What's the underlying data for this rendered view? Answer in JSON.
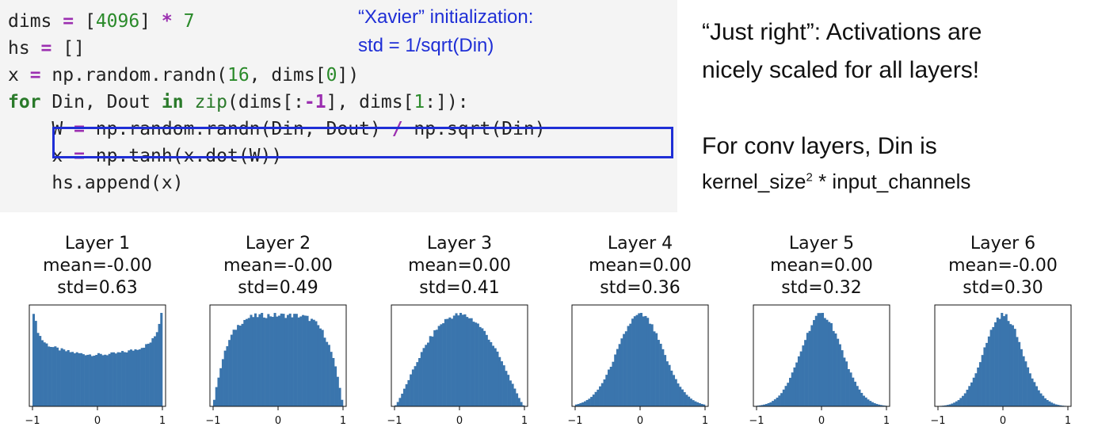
{
  "code": {
    "lines": [
      [
        [
          "dims ",
          "plain"
        ],
        [
          "=",
          "op"
        ],
        [
          " [",
          "plain"
        ],
        [
          "4096",
          "num"
        ],
        [
          "] ",
          "plain"
        ],
        [
          "*",
          "op"
        ],
        [
          " ",
          "plain"
        ],
        [
          "7",
          "num"
        ]
      ],
      [
        [
          "hs ",
          "plain"
        ],
        [
          "=",
          "op"
        ],
        [
          " []",
          "plain"
        ]
      ],
      [
        [
          "x ",
          "plain"
        ],
        [
          "=",
          "op"
        ],
        [
          " np.random.randn(",
          "plain"
        ],
        [
          "16",
          "num"
        ],
        [
          ", dims[",
          "plain"
        ],
        [
          "0",
          "num"
        ],
        [
          "])",
          "plain"
        ]
      ],
      [
        [
          "for",
          "kw"
        ],
        [
          " Din, Dout ",
          "plain"
        ],
        [
          "in",
          "kw"
        ],
        [
          " ",
          "plain"
        ],
        [
          "zip",
          "bi"
        ],
        [
          "(dims[:",
          "plain"
        ],
        [
          "-1",
          "op"
        ],
        [
          "], dims[",
          "plain"
        ],
        [
          "1",
          "num"
        ],
        [
          ":]):",
          "plain"
        ]
      ],
      [
        [
          "    W ",
          "plain"
        ],
        [
          "=",
          "op"
        ],
        [
          " np.random.randn(Din, Dout) ",
          "plain"
        ],
        [
          "/",
          "op"
        ],
        [
          " np.sqrt(Din)",
          "plain"
        ]
      ],
      [
        [
          "    x ",
          "plain"
        ],
        [
          "=",
          "op"
        ],
        [
          " np.tanh(x.dot(W))",
          "plain"
        ]
      ],
      [
        [
          "    hs.append(x)",
          "plain"
        ]
      ]
    ]
  },
  "annotation": {
    "line1": "“Xavier” initialization:",
    "line2": "std = 1/sqrt(Din)"
  },
  "notes": {
    "line1": "“Just right”: Activations are",
    "line2": "nicely scaled for all layers!",
    "line3": "For conv layers, Din is",
    "line4_pre": "kernel_size",
    "line4_sup": "2",
    "line4_post": " * input_channels"
  },
  "colors": {
    "bar": "#3a75ad",
    "box": "#1f2fd6"
  },
  "chart_data": [
    {
      "type": "bar",
      "title": "Layer 1",
      "mean_label": "mean=-0.00",
      "std_label": "std=0.63",
      "mean": -0.0,
      "std": 0.63,
      "xlim": [
        -1,
        1
      ],
      "xticks": [
        "−1",
        "0",
        "1"
      ],
      "shape": "u"
    },
    {
      "type": "bar",
      "title": "Layer 2",
      "mean_label": "mean=-0.00",
      "std_label": "std=0.49",
      "mean": -0.0,
      "std": 0.49,
      "xlim": [
        -1,
        1
      ],
      "xticks": [
        "−1",
        "0",
        "1"
      ],
      "shape": "plateau"
    },
    {
      "type": "bar",
      "title": "Layer 3",
      "mean_label": "mean=0.00",
      "std_label": "std=0.41",
      "mean": 0.0,
      "std": 0.41,
      "xlim": [
        -1,
        1
      ],
      "xticks": [
        "−1",
        "0",
        "1"
      ],
      "shape": "dome"
    },
    {
      "type": "bar",
      "title": "Layer 4",
      "mean_label": "mean=0.00",
      "std_label": "std=0.36",
      "mean": 0.0,
      "std": 0.36,
      "xlim": [
        -1,
        1
      ],
      "xticks": [
        "−1",
        "0",
        "1"
      ],
      "shape": "gauss"
    },
    {
      "type": "bar",
      "title": "Layer 5",
      "mean_label": "mean=0.00",
      "std_label": "std=0.32",
      "mean": 0.0,
      "std": 0.32,
      "xlim": [
        -1,
        1
      ],
      "xticks": [
        "−1",
        "0",
        "1"
      ],
      "shape": "gauss"
    },
    {
      "type": "bar",
      "title": "Layer 6",
      "mean_label": "mean=-0.00",
      "std_label": "std=0.30",
      "mean": -0.0,
      "std": 0.3,
      "xlim": [
        -1,
        1
      ],
      "xticks": [
        "−1",
        "0",
        "1"
      ],
      "shape": "gauss"
    }
  ]
}
